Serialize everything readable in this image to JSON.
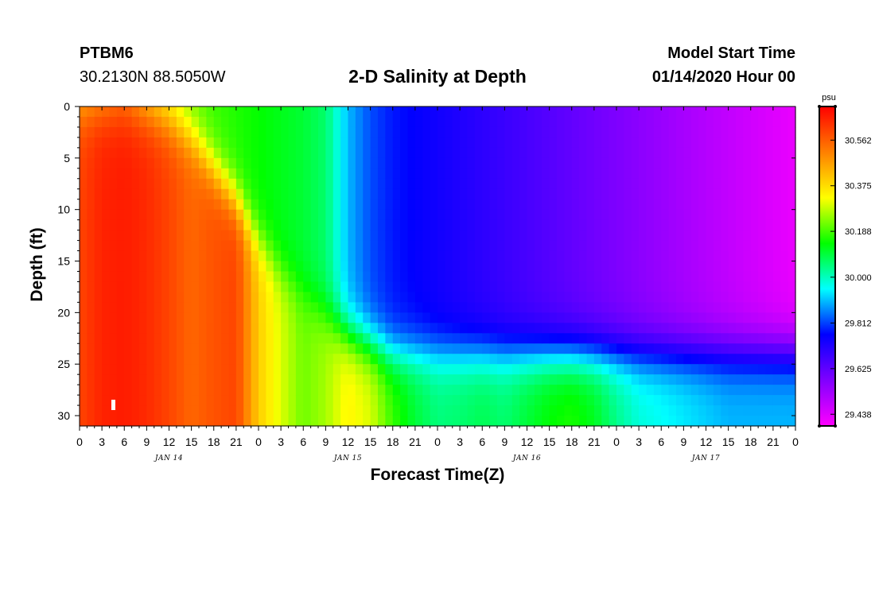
{
  "header": {
    "station_name": "PTBM6",
    "station_coords": "30.2130N 88.5050W",
    "title": "2-D Salinity at Depth",
    "start_label": "Model Start Time",
    "start_value": "01/14/2020 Hour 00"
  },
  "chart_data": {
    "type": "heatmap",
    "title": "2-D Salinity at Depth",
    "xlabel": "Forecast Time(Z)",
    "ylabel": "Depth (ft)",
    "x_tick_labels": [
      "0",
      "3",
      "6",
      "9",
      "12",
      "15",
      "18",
      "21",
      "0",
      "3",
      "6",
      "9",
      "12",
      "15",
      "18",
      "21",
      "0",
      "3",
      "6",
      "9",
      "12",
      "15",
      "18",
      "21",
      "0",
      "3",
      "6",
      "9",
      "12",
      "15",
      "18",
      "21",
      "0"
    ],
    "x_range_hours": [
      0,
      96
    ],
    "day_labels": [
      {
        "label": "JAN 14",
        "hour": 12
      },
      {
        "label": "JAN 15",
        "hour": 36
      },
      {
        "label": "JAN 16",
        "hour": 60
      },
      {
        "label": "JAN 17",
        "hour": 84
      }
    ],
    "y_ticks": [
      0,
      5,
      10,
      15,
      20,
      25,
      30
    ],
    "y_range_ft": [
      0,
      31
    ],
    "y_inverted": true,
    "colorbar": {
      "unit": "psu",
      "ticks": [
        "30.562",
        "30.375",
        "30.188",
        "30.000",
        "29.812",
        "29.625",
        "29.438"
      ],
      "range": [
        29.39,
        30.7
      ],
      "colors": [
        "#ff00ff",
        "#8000ff",
        "#0000ff",
        "#00ffff",
        "#00ff00",
        "#ffff00",
        "#ff8000",
        "#ff0000"
      ]
    },
    "grid": false,
    "surface_interface_depth_ft": [
      0.5,
      0.5,
      0.6,
      0.8,
      1.5,
      3,
      6,
      9,
      13,
      16,
      18,
      20,
      22,
      23,
      24,
      24,
      24,
      24,
      24,
      24,
      24,
      24,
      24,
      24,
      24,
      24,
      24,
      24,
      24,
      24,
      24,
      24,
      24
    ],
    "surface_salinity_psu": [
      30.4,
      30.45,
      30.5,
      30.38,
      30.3,
      30.22,
      30.18,
      30.16,
      30.14,
      30.12,
      30.1,
      30.06,
      29.9,
      29.82,
      29.78,
      29.76,
      29.74,
      29.72,
      29.7,
      29.68,
      29.66,
      29.64,
      29.62,
      29.6,
      29.58,
      29.56,
      29.54,
      29.52,
      29.5,
      29.48,
      29.46,
      29.44,
      29.42
    ],
    "bottom_salinity_psu": [
      30.6,
      30.65,
      30.66,
      30.64,
      30.6,
      30.55,
      30.58,
      30.6,
      30.4,
      30.3,
      30.22,
      30.26,
      30.34,
      30.3,
      30.18,
      30.1,
      30.05,
      30.06,
      30.08,
      30.06,
      30.1,
      30.14,
      30.16,
      30.12,
      30.04,
      29.98,
      29.96,
      29.94,
      29.92,
      29.9,
      29.9,
      29.9,
      29.9
    ]
  }
}
